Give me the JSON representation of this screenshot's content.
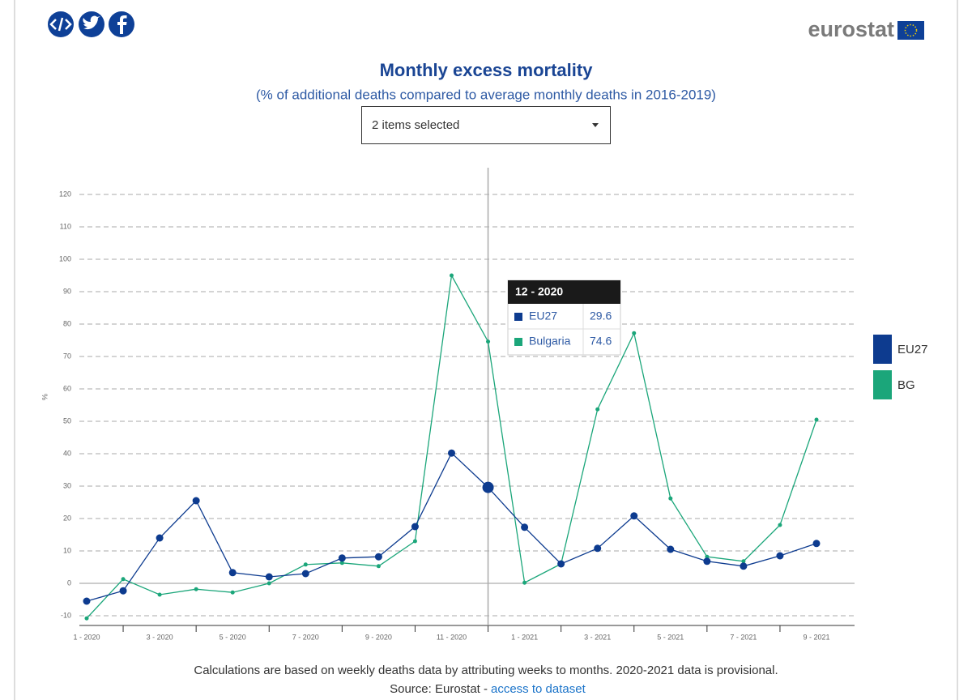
{
  "logo": "eurostat",
  "dropdown": "2 items selected",
  "footnote": "Calculations are based on weekly deaths data by attributing weeks to months. 2020-2021 data is provisional.",
  "source": "Source: Eurostat -",
  "source_link": "access to dataset",
  "chart_data": {
    "type": "line",
    "title": "Monthly excess mortality",
    "subtitle": "(% of additional deaths compared to average monthly deaths in 2016-2019)",
    "y_label": "%",
    "categories": [
      "1 - 2020",
      null,
      "3 - 2020",
      null,
      "5 - 2020",
      null,
      "7 - 2020",
      null,
      "9 - 2020",
      null,
      "11 - 2020",
      null,
      "1 - 2021",
      null,
      "3 - 2021",
      null,
      "5 - 2021",
      null,
      "7 - 2021",
      null,
      "9 - 2021"
    ],
    "series": [
      {
        "name": "EU27",
        "color": "#0d3b8f",
        "values": [
          -5.5,
          -2.3,
          14,
          25.5,
          3.3,
          2,
          3,
          7.8,
          8.2,
          17.5,
          40.2,
          29.6,
          17.3,
          6,
          10.8,
          20.8,
          10.5,
          6.8,
          5.3,
          8.5,
          12.3
        ]
      },
      {
        "name": "BG",
        "color": "#1ba67a",
        "values": [
          -10.8,
          1.3,
          -3.5,
          -1.8,
          -2.8,
          0,
          5.8,
          6.3,
          5.3,
          13,
          95,
          74.6,
          0.2,
          6,
          53.7,
          77.2,
          26.2,
          8.2,
          6.8,
          18,
          50.5
        ]
      }
    ],
    "ylim": [
      -13,
      128
    ],
    "yticks": [
      -10,
      0,
      10,
      20,
      30,
      40,
      50,
      60,
      70,
      80,
      90,
      100,
      110,
      120
    ],
    "grid": true,
    "legend": "right",
    "tooltip": {
      "category": "12 - 2020",
      "index": 11,
      "items": [
        {
          "name": "EU27",
          "value": 29.6
        },
        {
          "name": "Bulgaria",
          "value": 74.6
        }
      ]
    }
  }
}
